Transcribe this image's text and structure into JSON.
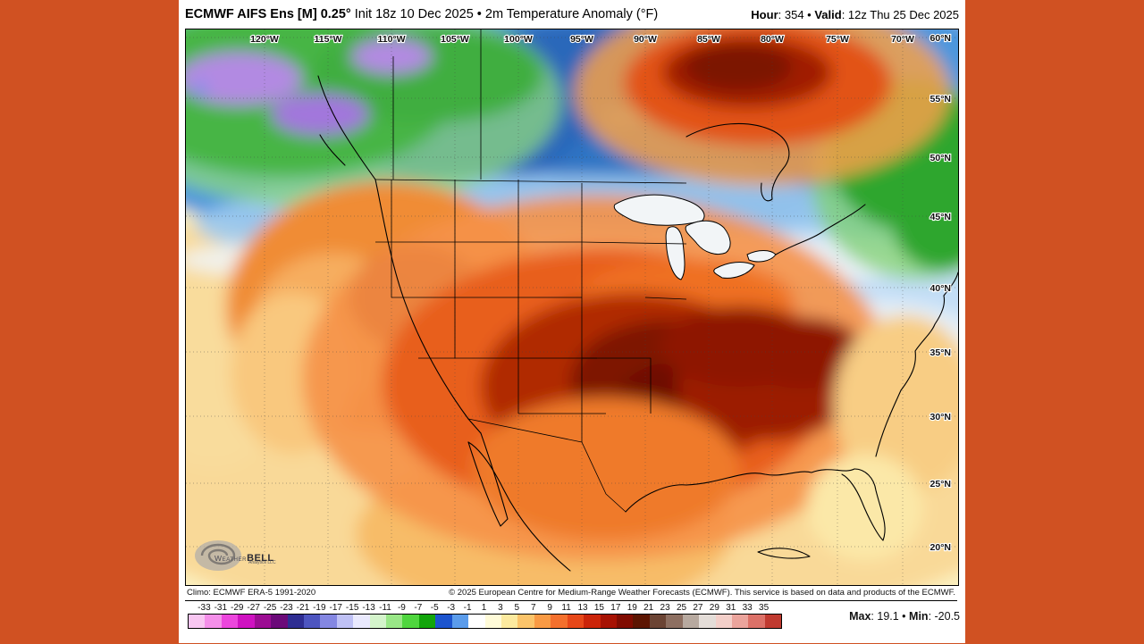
{
  "header": {
    "title_bold": "ECMWF AIFS Ens [M] 0.25°",
    "title_rest": " Init 18z 10 Dec 2025 • 2m Temperature Anomaly (°F)",
    "hour_label": "Hour",
    "hour_value": ": 354",
    "mid_sep": " • ",
    "valid_label": "Valid",
    "valid_value": ": 12z Thu 25 Dec 2025"
  },
  "map": {
    "top_axis_labels": [
      "120°W",
      "115°W",
      "110°W",
      "105°W",
      "100°W",
      "95°W",
      "90°W",
      "85°W",
      "80°W",
      "75°W",
      "70°W"
    ],
    "right_axis_labels": [
      "60°N",
      "55°N",
      "50°N",
      "45°N",
      "40°N",
      "35°N",
      "30°N",
      "25°N",
      "20°N"
    ],
    "watermark": {
      "brand_light": "Weather",
      "brand_bold": "BELL",
      "sub": "Analytics LLC"
    }
  },
  "footer": {
    "climo": "Climo: ECMWF ERA-5 1991-2020",
    "copyright": "© 2025 European Centre for Medium-Range Weather Forecasts (ECMWF). This service is based on data and products of the ECMWF.",
    "max_label": "Max",
    "max_value": ": 19.1",
    "sep": " • ",
    "min_label": "Min",
    "min_value": ": -20.5"
  },
  "colorbar": {
    "unit": "°F",
    "tick_labels": [
      "-33",
      "-31",
      "-29",
      "-27",
      "-25",
      "-23",
      "-21",
      "-19",
      "-17",
      "-15",
      "-13",
      "-11",
      "-9",
      "-7",
      "-5",
      "-3",
      "-1",
      "1",
      "3",
      "5",
      "7",
      "9",
      "11",
      "13",
      "15",
      "17",
      "19",
      "21",
      "23",
      "25",
      "27",
      "29",
      "31",
      "33",
      "35"
    ],
    "colors": [
      "#f8c6f1",
      "#f48fe9",
      "#ec46dd",
      "#cf12c1",
      "#9c0d93",
      "#6b0a79",
      "#2e2d92",
      "#4d55c0",
      "#8487e2",
      "#bfc1f5",
      "#e9e9fd",
      "#d4f4cb",
      "#99e787",
      "#4fd63e",
      "#12a50a",
      "#1c54ce",
      "#5b9ceb",
      "#ffffff",
      "#fffbd8",
      "#fcea9f",
      "#fbc46a",
      "#f99a44",
      "#f4702d",
      "#e74819",
      "#cb2409",
      "#a71203",
      "#800c01",
      "#5c1502",
      "#6b4434",
      "#8d6f61",
      "#b7a99f",
      "#e4ddd8",
      "#f3cfc9",
      "#eba49c",
      "#dc7168",
      "#c03a30"
    ]
  },
  "colors": {
    "frame_background": "#d05122",
    "panel_background": "#ffffff",
    "map_border": "#000000",
    "warm_core": "#7e1200",
    "cold_core": "#2a67ba"
  }
}
